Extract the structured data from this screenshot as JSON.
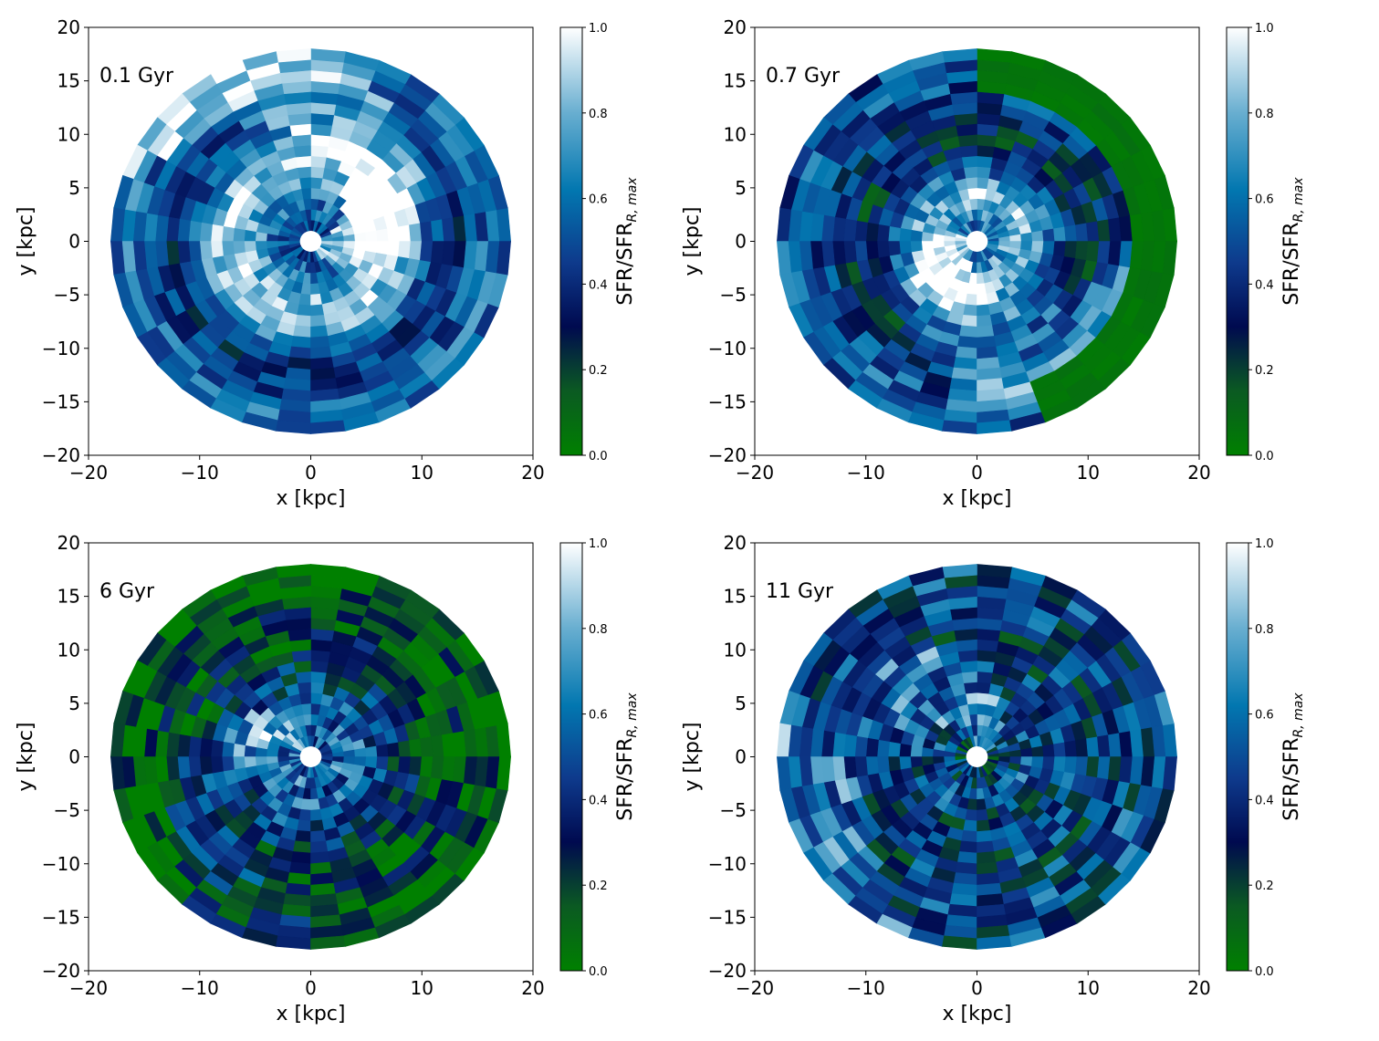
{
  "figure": {
    "colormap": {
      "stops": [
        {
          "v": 0.0,
          "color": "#008000"
        },
        {
          "v": 0.15,
          "color": "#0b5a22"
        },
        {
          "v": 0.3,
          "color": "#000a4f"
        },
        {
          "v": 0.45,
          "color": "#0e3a8c"
        },
        {
          "v": 0.62,
          "color": "#0277b0"
        },
        {
          "v": 0.8,
          "color": "#68aed0"
        },
        {
          "v": 1.0,
          "color": "#ffffff"
        }
      ]
    }
  },
  "chart_data": [
    {
      "type": "heatmap",
      "geometry": "polar-grid",
      "annotation": "0.1 Gyr",
      "xlabel": "x [kpc]",
      "ylabel": "y [kpc]",
      "xlim": [
        -20,
        20
      ],
      "ylim": [
        -20,
        20
      ],
      "xticks": [
        "−20",
        "−10",
        "0",
        "10",
        "20"
      ],
      "yticks": [
        "−20",
        "−15",
        "−10",
        "−5",
        "0",
        "5",
        "10",
        "15",
        "20"
      ],
      "colorbar": {
        "label": "SFR/SFR",
        "label_sub": "R, max",
        "range": [
          0,
          1
        ],
        "ticks": [
          "0.0",
          "0.2",
          "0.4",
          "0.6",
          "0.8",
          "1.0"
        ]
      },
      "grid": {
        "r_edges": [
          1,
          2,
          3,
          4,
          5,
          6,
          7,
          8,
          9,
          10,
          11,
          12,
          13,
          14,
          15,
          16,
          17,
          18
        ],
        "n_angular_bins": 36
      },
      "sfr_pattern": {
        "seed": 11,
        "base": 0.5,
        "noise": 0.18,
        "radial_profile": [
          0.5,
          0.55,
          0.6,
          0.7,
          0.78,
          0.85,
          0.85,
          0.8,
          0.7,
          0.55,
          0.45,
          0.4,
          0.42,
          0.5,
          0.55,
          0.6,
          0.55
        ],
        "bright_arm_angle_deg": -20,
        "arm_width_deg": 40,
        "arm_boost": 0.3
      }
    },
    {
      "type": "heatmap",
      "geometry": "polar-grid",
      "annotation": "0.7 Gyr",
      "xlabel": "x [kpc]",
      "ylabel": "y [kpc]",
      "xlim": [
        -20,
        20
      ],
      "ylim": [
        -20,
        20
      ],
      "xticks": [
        "−20",
        "−10",
        "0",
        "10",
        "20"
      ],
      "yticks": [
        "−20",
        "−15",
        "−10",
        "−5",
        "0",
        "5",
        "10",
        "15",
        "20"
      ],
      "colorbar": {
        "label": "SFR/SFR",
        "label_sub": "R, max",
        "range": [
          0,
          1
        ],
        "ticks": [
          "0.0",
          "0.2",
          "0.4",
          "0.6",
          "0.8",
          "1.0"
        ]
      },
      "grid": {
        "r_edges": [
          1,
          2,
          3,
          4,
          5,
          6,
          7,
          8,
          9,
          10,
          11,
          12,
          13,
          14,
          15,
          16,
          17,
          18
        ],
        "n_angular_bins": 36
      },
      "sfr_pattern": {
        "seed": 27,
        "base": 0.45,
        "noise": 0.2,
        "radial_profile": [
          0.6,
          0.7,
          0.8,
          0.85,
          0.75,
          0.6,
          0.5,
          0.35,
          0.3,
          0.3,
          0.35,
          0.4,
          0.45,
          0.5,
          0.55,
          0.55,
          0.5
        ],
        "bright_arm_angle_deg": 200,
        "arm_width_deg": 50,
        "arm_boost": 0.25,
        "green_sector_deg": [
          -70,
          90
        ],
        "green_from_ring": 13
      }
    },
    {
      "type": "heatmap",
      "geometry": "polar-grid",
      "annotation": "6 Gyr",
      "xlabel": "x [kpc]",
      "ylabel": "y [kpc]",
      "xlim": [
        -20,
        20
      ],
      "ylim": [
        -20,
        20
      ],
      "xticks": [
        "−20",
        "−10",
        "0",
        "10",
        "20"
      ],
      "yticks": [
        "−20",
        "−15",
        "−10",
        "−5",
        "0",
        "5",
        "10",
        "15",
        "20"
      ],
      "colorbar": {
        "label": "SFR/SFR",
        "label_sub": "R, max",
        "range": [
          0,
          1
        ],
        "ticks": [
          "0.0",
          "0.2",
          "0.4",
          "0.6",
          "0.8",
          "1.0"
        ]
      },
      "grid": {
        "r_edges": [
          1,
          2,
          3,
          4,
          5,
          6,
          7,
          8,
          9,
          10,
          11,
          12,
          13,
          14,
          15,
          16,
          17,
          18
        ],
        "n_angular_bins": 36
      },
      "sfr_pattern": {
        "seed": 43,
        "base": 0.35,
        "noise": 0.25,
        "radial_profile": [
          0.55,
          0.6,
          0.55,
          0.6,
          0.5,
          0.45,
          0.4,
          0.35,
          0.25,
          0.2,
          0.2,
          0.18,
          0.15,
          0.12,
          0.08,
          0.05,
          0.05
        ],
        "bright_arm_angle_deg": 120,
        "arm_width_deg": 30,
        "arm_boost": 0.2
      }
    },
    {
      "type": "heatmap",
      "geometry": "polar-grid",
      "annotation": "11 Gyr",
      "xlabel": "x [kpc]",
      "ylabel": "y [kpc]",
      "xlim": [
        -20,
        20
      ],
      "ylim": [
        -20,
        20
      ],
      "xticks": [
        "−20",
        "−10",
        "0",
        "10",
        "20"
      ],
      "yticks": [
        "−20",
        "−15",
        "−10",
        "−5",
        "0",
        "5",
        "10",
        "15",
        "20"
      ],
      "colorbar": {
        "label": "SFR/SFR",
        "label_sub": "R, max",
        "range": [
          0,
          1
        ],
        "ticks": [
          "0.0",
          "0.2",
          "0.4",
          "0.6",
          "0.8",
          "1.0"
        ]
      },
      "grid": {
        "r_edges": [
          1,
          2,
          3,
          4,
          5,
          6,
          7,
          8,
          9,
          10,
          11,
          12,
          13,
          14,
          15,
          16,
          17,
          18
        ],
        "n_angular_bins": 36
      },
      "sfr_pattern": {
        "seed": 59,
        "base": 0.42,
        "noise": 0.28,
        "radial_profile": [
          0.35,
          0.4,
          0.45,
          0.5,
          0.45,
          0.4,
          0.42,
          0.45,
          0.4,
          0.4,
          0.38,
          0.4,
          0.42,
          0.45,
          0.45,
          0.45,
          0.45
        ],
        "bright_arm_angle_deg": 70,
        "arm_width_deg": 40,
        "arm_boost": 0.2
      }
    }
  ]
}
